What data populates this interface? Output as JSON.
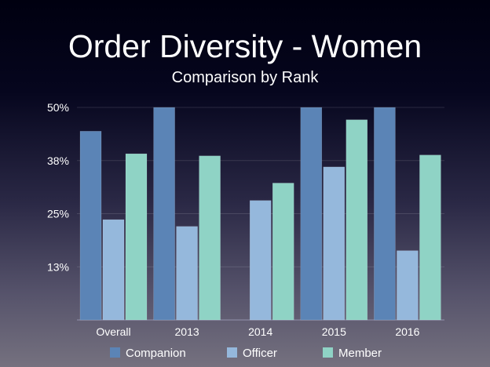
{
  "chart_data": {
    "type": "bar",
    "title": "Order Diversity - Women",
    "subtitle": "Comparison by Rank",
    "xlabel": "",
    "ylabel": "",
    "ylim": [
      0,
      50
    ],
    "yticks": [
      0,
      12.5,
      25,
      37.5,
      50
    ],
    "ytick_labels": [
      "",
      "13%",
      "25%",
      "38%",
      "50%"
    ],
    "grid": true,
    "legend_position": "bottom",
    "categories": [
      "Overall",
      "2013",
      "2014",
      "2015",
      "2016"
    ],
    "series": [
      {
        "name": "Companion",
        "color": "#5b84b6",
        "values": [
          44.4,
          50,
          0,
          50,
          50
        ]
      },
      {
        "name": "Officer",
        "color": "#95b8dc",
        "values": [
          23.6,
          22.0,
          28.1,
          36.0,
          16.3
        ]
      },
      {
        "name": "Member",
        "color": "#8fd3c5",
        "values": [
          39.1,
          38.6,
          32.2,
          47.1,
          38.8
        ]
      }
    ]
  }
}
